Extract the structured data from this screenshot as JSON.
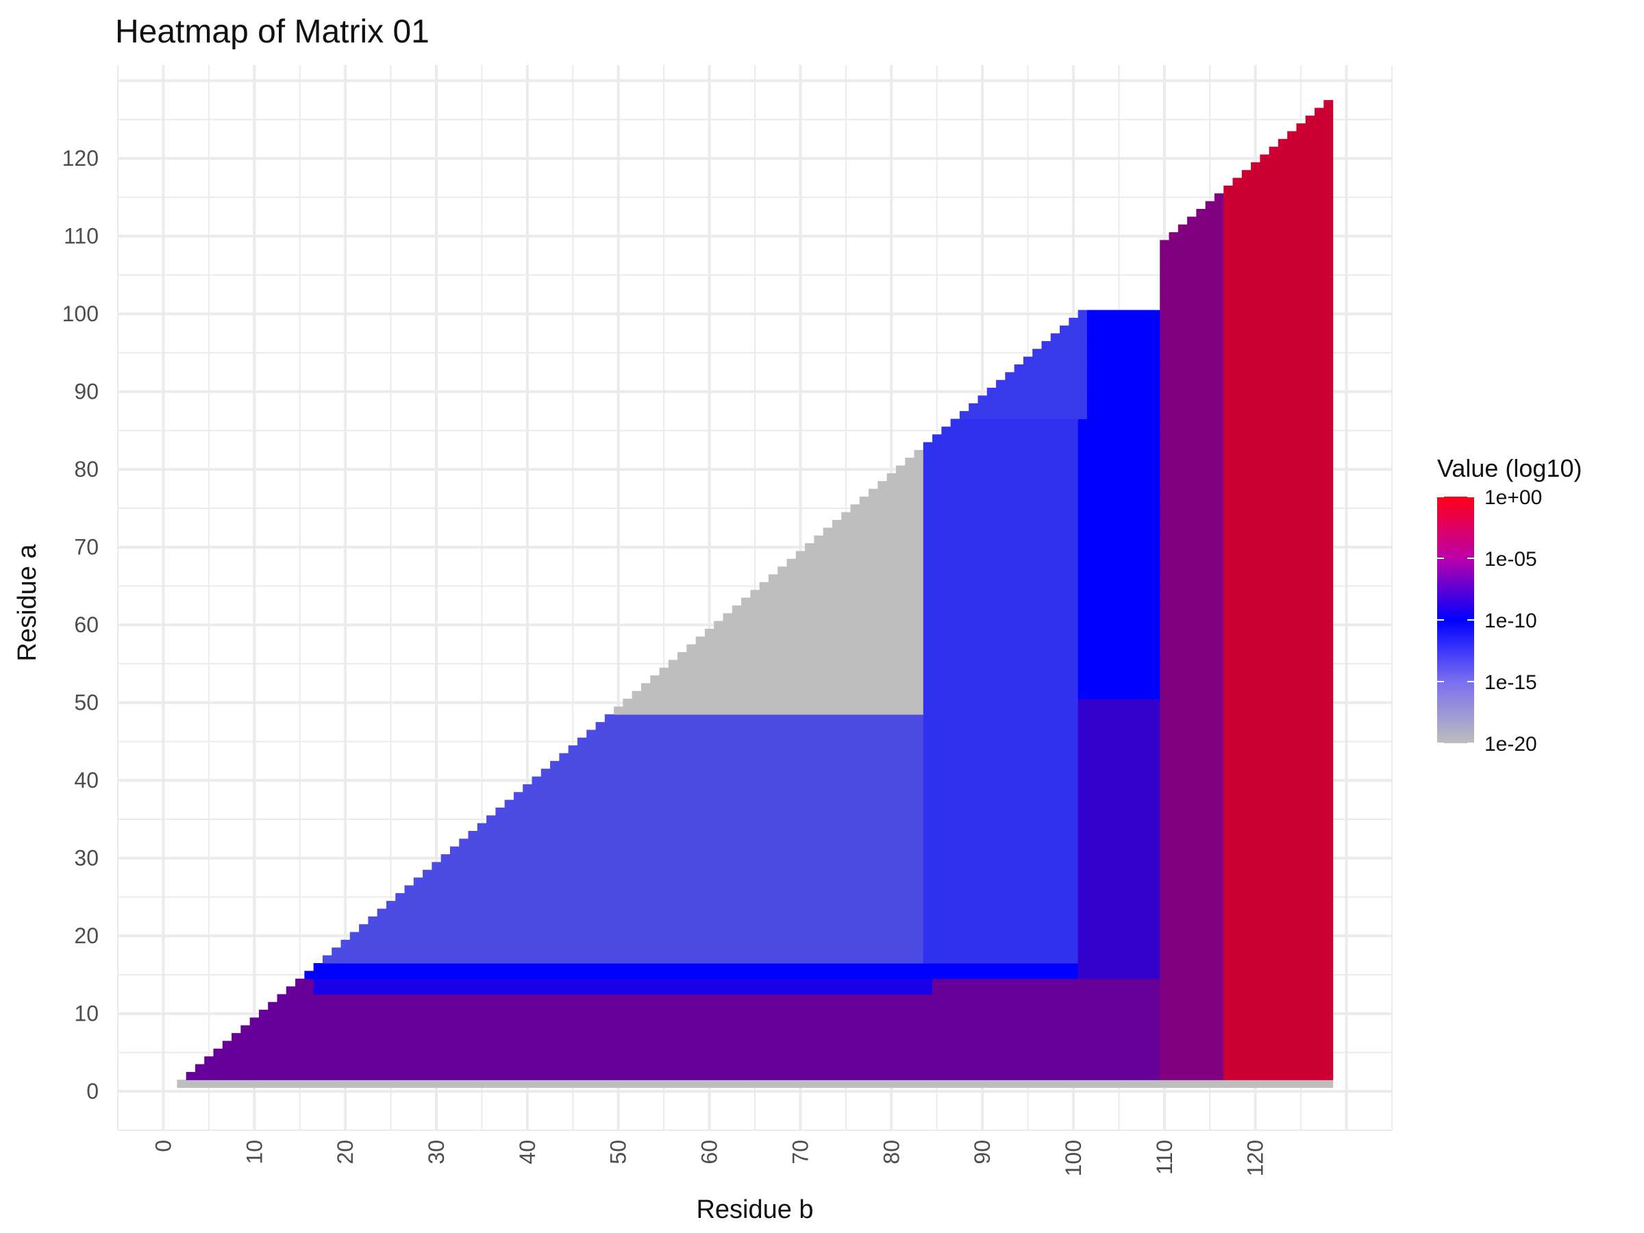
{
  "chart_data": {
    "type": "heatmap",
    "title": "Heatmap of Matrix 01",
    "xlabel": "Residue b",
    "ylabel": "Residue a",
    "xlim": [
      -5,
      135
    ],
    "ylim": [
      -5,
      132
    ],
    "x_ticks": [
      0,
      10,
      20,
      30,
      40,
      50,
      60,
      70,
      80,
      90,
      100,
      110,
      120
    ],
    "y_ticks": [
      0,
      10,
      20,
      30,
      40,
      50,
      60,
      70,
      80,
      90,
      100,
      110,
      120
    ],
    "x_tick_labels": [
      "0",
      "10",
      "20",
      "30",
      "40",
      "50",
      "60",
      "70",
      "80",
      "90",
      "100",
      "110",
      "120"
    ],
    "y_tick_labels": [
      "0",
      "10",
      "20",
      "30",
      "40",
      "50",
      "60",
      "70",
      "80",
      "90",
      "100",
      "110",
      "120"
    ],
    "grid": true,
    "matrix_size": 128,
    "shape": "upper-triangle (a < b)",
    "value_scale": "log10",
    "value_range_log10": [
      -20,
      0
    ],
    "colorscale": [
      {
        "log10": -20,
        "color": "#bebebe"
      },
      {
        "log10": -10,
        "color": "#0000ff"
      },
      {
        "log10": 0,
        "color": "#ff0000"
      }
    ],
    "regions_log10": [
      {
        "a": [
          1,
          1
        ],
        "b": [
          1,
          128
        ],
        "value": -20
      },
      {
        "a": [
          49,
          86
        ],
        "b": [
          1,
          86
        ],
        "value": -20
      },
      {
        "a": [
          2,
          14
        ],
        "b": [
          1,
          128
        ],
        "value": -6
      },
      {
        "a": [
          13,
          14
        ],
        "b": [
          17,
          84
        ],
        "value": -9
      },
      {
        "a": [
          15,
          16
        ],
        "b": [
          1,
          101
        ],
        "value": -10
      },
      {
        "a": [
          17,
          48
        ],
        "b": [
          1,
          84
        ],
        "value": -14
      },
      {
        "a": [
          17,
          86
        ],
        "b": [
          84,
          101
        ],
        "value": -12.5
      },
      {
        "a": [
          51,
          100
        ],
        "b": [
          101,
          110
        ],
        "value": -10
      },
      {
        "a": [
          15,
          50
        ],
        "b": [
          101,
          110
        ],
        "value": -8
      },
      {
        "a": [
          87,
          127
        ],
        "b": [
          87,
          101
        ],
        "value": -13
      },
      {
        "a": [
          2,
          127
        ],
        "b": [
          110,
          117
        ],
        "value": -5
      },
      {
        "a": [
          2,
          127
        ],
        "b": [
          117,
          128
        ],
        "value": -2
      }
    ],
    "legend": {
      "title": "Value (log10)",
      "position": "right",
      "labels": [
        "1e+00",
        "1e-05",
        "1e-10",
        "1e-15",
        "1e-20"
      ],
      "values_log10": [
        0,
        -5,
        -10,
        -15,
        -20
      ]
    }
  }
}
